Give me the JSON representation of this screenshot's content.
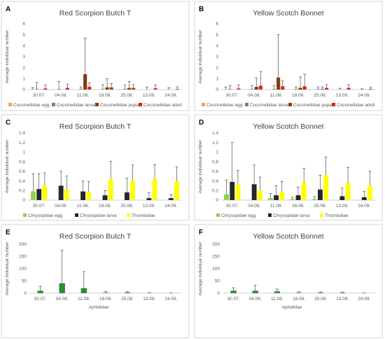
{
  "colors": {
    "coccinellidae_egg": "#f4a24a",
    "coccinellidae_larva": "#7f7f7f",
    "coccinellidae_pupa": "#843c0c",
    "coccinellidae_adult": "#e02020",
    "chrysopidae_egg": "#92d050",
    "chrysopidae_larva": "#262626",
    "thomisidae": "#ffff00",
    "aphididae": "#2e8b30"
  },
  "chart_data": [
    {
      "panel": "A",
      "title": "Red Scorpion Butch T",
      "type": "bar",
      "ylabel": "Average individual number",
      "ylim": [
        0,
        6
      ],
      "yticks": [
        "0",
        "1",
        "2",
        "3",
        "4",
        "5",
        "6"
      ],
      "categories": [
        "30.07.",
        "04.08.",
        "11.08.",
        "18.08.",
        "25.08.",
        "13.09.",
        "24.09."
      ],
      "legend_position": "bottom",
      "series": [
        {
          "name": "Coccinellidae egg",
          "values": [
            0.02,
            0.0,
            0.0,
            0.0,
            0.0,
            0.0,
            0.0
          ],
          "errors": [
            0.15,
            0.0,
            0.0,
            0.0,
            0.0,
            0.0,
            0.0
          ]
        },
        {
          "name": "Coccinellidae larva",
          "values": [
            0.05,
            0.05,
            0.05,
            0.05,
            0.05,
            0.02,
            0.02
          ],
          "errors": [
            0.6,
            0.7,
            0.2,
            0.4,
            0.35,
            0.2,
            0.15
          ]
        },
        {
          "name": "Coccinellidae pupa",
          "values": [
            0.0,
            0.0,
            1.4,
            0.2,
            0.15,
            0.0,
            0.0
          ],
          "errors": [
            0.0,
            0.0,
            3.3,
            0.8,
            0.6,
            0.0,
            0.0
          ]
        },
        {
          "name": "Coccinellidae adult",
          "values": [
            0.1,
            0.15,
            0.25,
            0.2,
            0.15,
            0.12,
            0.05
          ],
          "errors": [
            0.3,
            0.35,
            0.35,
            0.35,
            0.3,
            0.3,
            0.2
          ]
        }
      ]
    },
    {
      "panel": "B",
      "title": "Yellow Scotch Bonnet",
      "type": "bar",
      "ylabel": "Average individual number",
      "ylim": [
        0,
        6
      ],
      "yticks": [
        "0",
        "1",
        "2",
        "3",
        "4",
        "5",
        "6"
      ],
      "categories": [
        "30.07.",
        "04.08.",
        "11.08.",
        "18.08.",
        "25.08.",
        "13.09.",
        "24.09."
      ],
      "legend_position": "bottom",
      "series": [
        {
          "name": "Coccinellidae egg",
          "values": [
            0.02,
            0.0,
            0.0,
            0.0,
            0.0,
            0.0,
            0.0
          ],
          "errors": [
            0.2,
            0.0,
            0.0,
            0.0,
            0.0,
            0.0,
            0.0
          ]
        },
        {
          "name": "Coccinellidae larva",
          "values": [
            0.05,
            0.05,
            0.05,
            0.05,
            0.05,
            0.02,
            0.02
          ],
          "errors": [
            0.3,
            0.3,
            0.3,
            0.2,
            0.2,
            0.1,
            0.05
          ]
        },
        {
          "name": "Coccinellidae pupa",
          "values": [
            0.0,
            0.25,
            1.1,
            0.15,
            0.05,
            0.0,
            0.0
          ],
          "errors": [
            0.0,
            0.8,
            3.9,
            1.0,
            0.2,
            0.0,
            0.0
          ]
        },
        {
          "name": "Coccinellidae adult",
          "values": [
            0.1,
            0.35,
            0.3,
            0.3,
            0.15,
            0.15,
            0.05
          ],
          "errors": [
            0.3,
            1.3,
            0.5,
            1.1,
            0.3,
            0.3,
            0.15
          ]
        }
      ]
    },
    {
      "panel": "C",
      "title": "Red Scorpion Butch T",
      "type": "bar",
      "ylabel": "Average individual number",
      "ylim": [
        0,
        1.4
      ],
      "yticks": [
        "0",
        "0.2",
        "0.4",
        "0.6",
        "0.8",
        "1",
        "1.2",
        "1.4"
      ],
      "categories": [
        "30.07.",
        "04.08.",
        "11.08.",
        "18.08.",
        "25.08.",
        "13.09.",
        "24.09."
      ],
      "legend_position": "bottom",
      "series": [
        {
          "name": "Chrysopidae egg",
          "values": [
            0.18,
            0.0,
            0.0,
            0.0,
            0.0,
            0.0,
            0.0
          ],
          "errors": [
            0.37,
            0.0,
            0.0,
            0.0,
            0.0,
            0.0,
            0.0
          ]
        },
        {
          "name": "Chrysopidae larva",
          "values": [
            0.23,
            0.3,
            0.18,
            0.1,
            0.16,
            0.04,
            0.04
          ],
          "errors": [
            0.32,
            0.3,
            0.22,
            0.1,
            0.3,
            0.12,
            0.07
          ]
        },
        {
          "name": "Thomisidae",
          "values": [
            0.3,
            0.22,
            0.17,
            0.43,
            0.4,
            0.44,
            0.39
          ],
          "errors": [
            0.27,
            0.28,
            0.22,
            0.38,
            0.33,
            0.3,
            0.3
          ]
        }
      ]
    },
    {
      "panel": "D",
      "title": "Yellow Scotch Bonnet",
      "type": "bar",
      "ylabel": "Average individual number",
      "ylim": [
        0,
        1.4
      ],
      "yticks": [
        "0",
        "0.2",
        "0.4",
        "0.6",
        "0.8",
        "1",
        "1.2",
        "1.4"
      ],
      "categories": [
        "30.07.",
        "04.08.",
        "11.08.",
        "18.08.",
        "25.08.",
        "13.09.",
        "24.09."
      ],
      "legend_position": "bottom",
      "series": [
        {
          "name": "Chrysopidae egg",
          "values": [
            0.12,
            0.0,
            0.04,
            0.02,
            0.02,
            0.0,
            0.0
          ],
          "errors": [
            0.3,
            0.0,
            0.1,
            0.04,
            0.05,
            0.0,
            0.0
          ]
        },
        {
          "name": "Chrysopidae larva",
          "values": [
            0.38,
            0.33,
            0.1,
            0.1,
            0.22,
            0.08,
            0.06
          ],
          "errors": [
            0.82,
            0.4,
            0.2,
            0.17,
            0.3,
            0.17,
            0.12
          ]
        },
        {
          "name": "Thomisidae",
          "values": [
            0.32,
            0.2,
            0.17,
            0.36,
            0.52,
            0.36,
            0.3
          ],
          "errors": [
            0.3,
            0.28,
            0.22,
            0.3,
            0.38,
            0.32,
            0.3
          ]
        }
      ]
    },
    {
      "panel": "E",
      "title": "Red Scorpion Butch T",
      "type": "bar",
      "ylabel": "Average individual number",
      "ylim": [
        0,
        200
      ],
      "yticks": [
        "0",
        "50",
        "100",
        "150",
        "200"
      ],
      "categories": [
        "30.07.",
        "04.08.",
        "11.08.",
        "18.08.",
        "25.08.",
        "13.09.",
        "24.09."
      ],
      "legend_position": "bottom",
      "series": [
        {
          "name": "Aphididae",
          "values": [
            10,
            40,
            20,
            2,
            3,
            0.5,
            0.3
          ],
          "errors": [
            18,
            135,
            68,
            5,
            4,
            1,
            0.8
          ]
        }
      ]
    },
    {
      "panel": "F",
      "title": "Yellow Scotch Bonnet",
      "type": "bar",
      "ylabel": "Average individual number",
      "ylim": [
        0,
        200
      ],
      "yticks": [
        "0",
        "50",
        "100",
        "150",
        "200"
      ],
      "categories": [
        "30.07.",
        "04.08.",
        "11.08.",
        "18.08.",
        "25.08.",
        "13.09.",
        "24.09."
      ],
      "legend_position": "bottom",
      "series": [
        {
          "name": "Aphididae",
          "values": [
            10,
            10,
            7,
            2,
            2,
            2,
            0.3
          ],
          "errors": [
            12,
            22,
            10,
            4,
            3,
            2,
            0.5
          ]
        }
      ]
    }
  ]
}
